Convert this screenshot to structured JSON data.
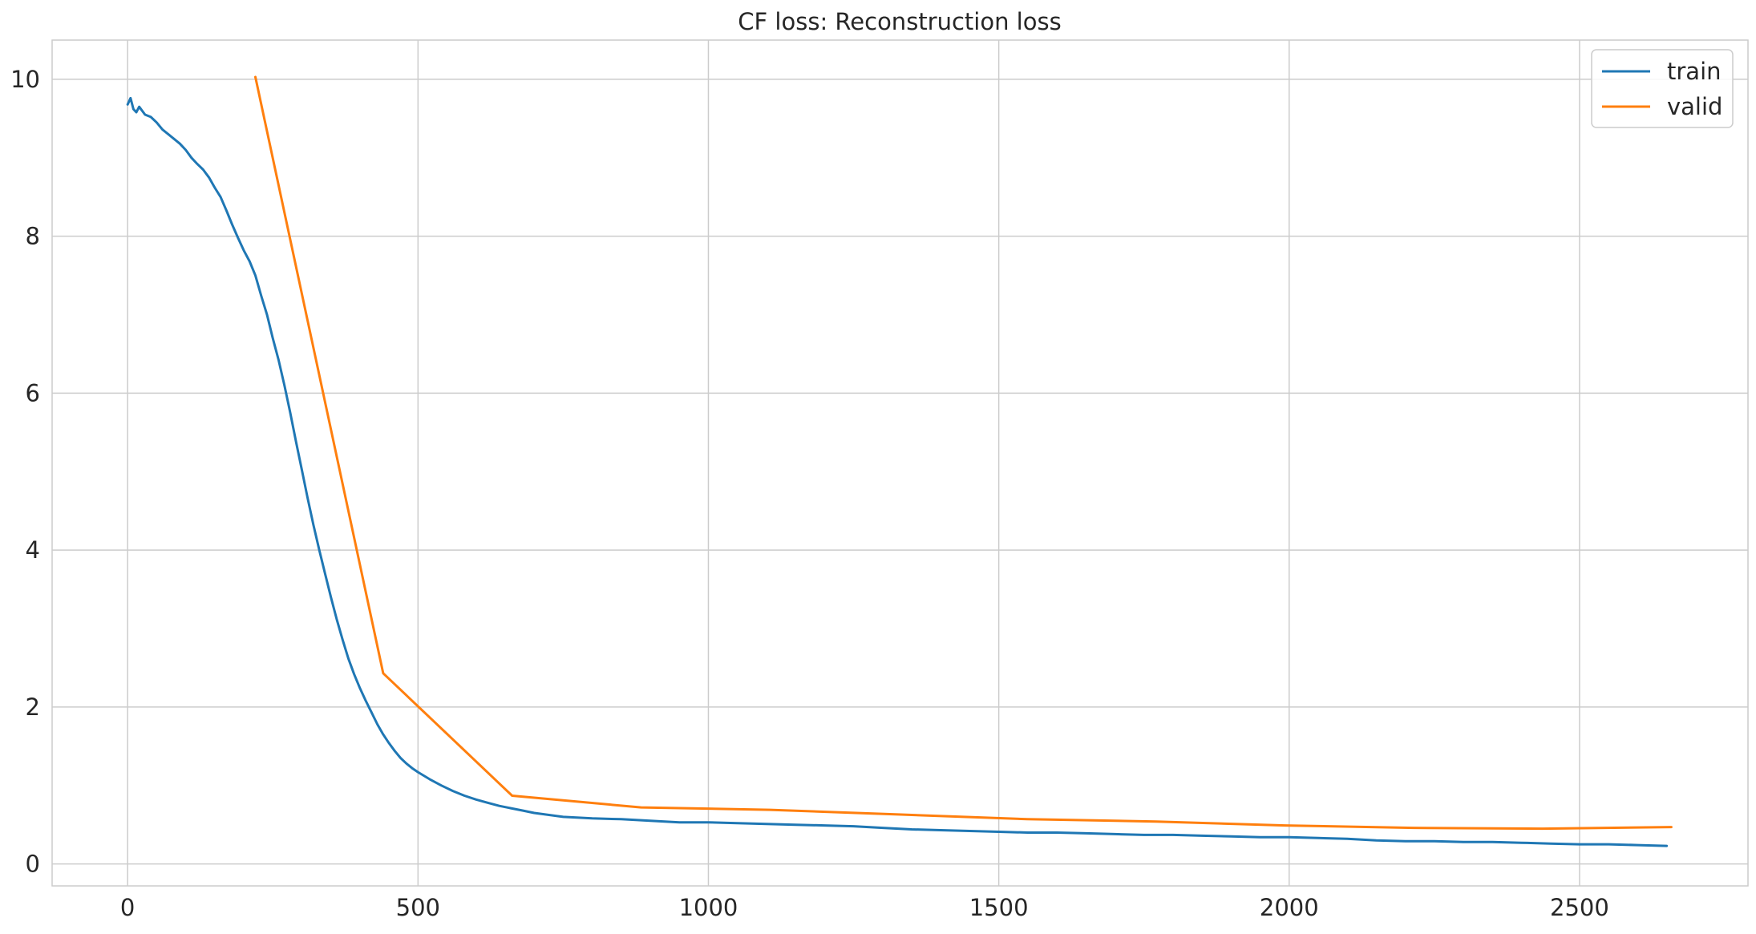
{
  "chart_data": {
    "type": "line",
    "title": "CF loss: Reconstruction loss",
    "xlabel": "",
    "ylabel": "",
    "xlim": [
      -130,
      2790
    ],
    "ylim": [
      -0.28,
      10.5
    ],
    "x_ticks": [
      0,
      500,
      1000,
      1500,
      2000,
      2500
    ],
    "y_ticks": [
      0,
      2,
      4,
      6,
      8,
      10
    ],
    "grid": true,
    "legend_position": "top-right",
    "series": [
      {
        "name": "train",
        "color": "#1f77b4",
        "x": [
          0,
          5,
          10,
          15,
          20,
          30,
          40,
          50,
          60,
          70,
          80,
          90,
          100,
          110,
          120,
          130,
          140,
          150,
          160,
          170,
          180,
          190,
          200,
          210,
          220,
          230,
          240,
          250,
          260,
          270,
          280,
          290,
          300,
          310,
          320,
          330,
          340,
          350,
          360,
          370,
          380,
          390,
          400,
          410,
          420,
          430,
          440,
          450,
          460,
          470,
          480,
          490,
          500,
          520,
          540,
          560,
          580,
          600,
          620,
          640,
          660,
          680,
          700,
          750,
          800,
          850,
          900,
          950,
          1000,
          1050,
          1100,
          1150,
          1200,
          1250,
          1300,
          1350,
          1400,
          1450,
          1500,
          1550,
          1600,
          1650,
          1700,
          1750,
          1800,
          1850,
          1900,
          1950,
          2000,
          2050,
          2100,
          2150,
          2200,
          2250,
          2300,
          2350,
          2400,
          2450,
          2500,
          2550,
          2600,
          2650
        ],
        "values": [
          9.68,
          9.76,
          9.62,
          9.58,
          9.65,
          9.55,
          9.52,
          9.45,
          9.36,
          9.3,
          9.24,
          9.18,
          9.1,
          9.0,
          8.92,
          8.85,
          8.75,
          8.62,
          8.5,
          8.33,
          8.15,
          7.98,
          7.82,
          7.68,
          7.5,
          7.24,
          7.0,
          6.7,
          6.42,
          6.1,
          5.75,
          5.38,
          5.02,
          4.66,
          4.32,
          4.0,
          3.7,
          3.4,
          3.12,
          2.86,
          2.62,
          2.42,
          2.24,
          2.08,
          1.93,
          1.78,
          1.65,
          1.54,
          1.44,
          1.35,
          1.28,
          1.22,
          1.17,
          1.08,
          1.0,
          0.93,
          0.87,
          0.82,
          0.78,
          0.74,
          0.71,
          0.68,
          0.65,
          0.6,
          0.58,
          0.57,
          0.55,
          0.53,
          0.53,
          0.52,
          0.51,
          0.5,
          0.49,
          0.48,
          0.46,
          0.44,
          0.43,
          0.42,
          0.41,
          0.4,
          0.4,
          0.39,
          0.38,
          0.37,
          0.37,
          0.36,
          0.35,
          0.34,
          0.34,
          0.33,
          0.32,
          0.3,
          0.29,
          0.29,
          0.28,
          0.28,
          0.27,
          0.26,
          0.25,
          0.25,
          0.24,
          0.23
        ]
      },
      {
        "name": "valid",
        "color": "#ff7f0e",
        "x": [
          220,
          440,
          662,
          884,
          1106,
          1327,
          1549,
          1771,
          1993,
          2214,
          2436,
          2658
        ],
        "values": [
          10.03,
          2.43,
          0.87,
          0.72,
          0.69,
          0.63,
          0.57,
          0.54,
          0.49,
          0.46,
          0.45,
          0.47
        ]
      }
    ]
  }
}
